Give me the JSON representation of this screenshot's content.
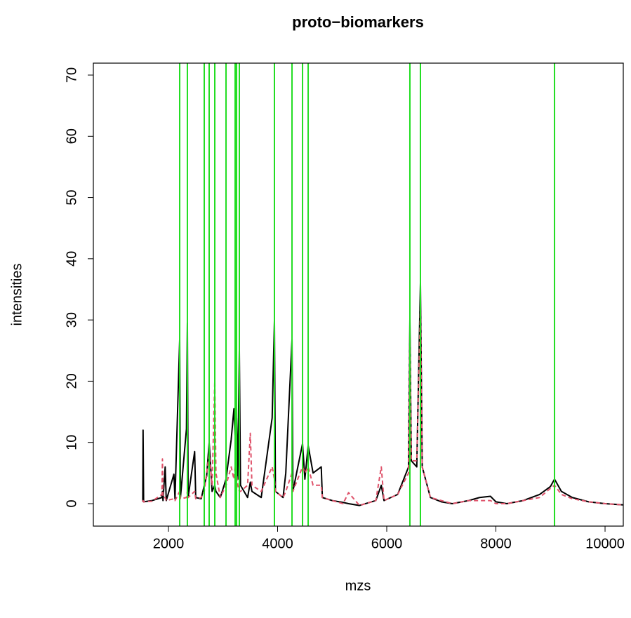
{
  "chart_data": {
    "type": "line",
    "title": "proto−biomarkers",
    "x_label": "mzs",
    "y_label": "intensities",
    "xlim": [
      624,
      10334
    ],
    "ylim": [
      -3.67,
      71.95
    ],
    "xticks": [
      2000,
      4000,
      6000,
      8000,
      10000
    ],
    "yticks": [
      0,
      10,
      20,
      30,
      40,
      50,
      60,
      70
    ],
    "x": [
      1530,
      1535,
      1545,
      1700,
      1880,
      1890,
      1900,
      1940,
      1960,
      2100,
      2120,
      2206,
      2220,
      2330,
      2347,
      2360,
      2480,
      2500,
      2600,
      2656,
      2700,
      2746,
      2800,
      2849,
      2870,
      2950,
      3055,
      3150,
      3200,
      3222,
      3248,
      3270,
      3299,
      3320,
      3450,
      3500,
      3530,
      3700,
      3900,
      3942,
      3960,
      4100,
      4150,
      4264,
      4280,
      4457,
      4500,
      4560,
      4650,
      4800,
      4820,
      5000,
      5200,
      5300,
      5500,
      5800,
      5900,
      5950,
      6200,
      6400,
      6424,
      6450,
      6550,
      6617,
      6650,
      6800,
      7000,
      7200,
      7500,
      7700,
      7900,
      8000,
      8200,
      8500,
      8800,
      9000,
      9074,
      9200,
      9400,
      9700,
      10000,
      10334
    ],
    "series": [
      {
        "color": "#000000",
        "dash": false,
        "values": [
          0.3,
          12,
          0.3,
          0.5,
          1,
          2,
          0.5,
          6,
          0.5,
          4.8,
          0.8,
          26.8,
          1,
          12.2,
          29.5,
          1,
          8.5,
          1,
          0.8,
          3,
          4.5,
          10,
          2,
          3,
          2,
          1,
          4,
          10.5,
          15.5,
          11,
          14,
          4,
          25,
          3,
          1,
          3.5,
          2,
          1,
          14,
          29.8,
          2,
          1,
          5,
          26.8,
          2,
          9.8,
          4,
          9.5,
          5,
          6,
          1,
          0.5,
          0.2,
          0,
          -0.3,
          0.5,
          3,
          0.5,
          1.5,
          6,
          30,
          7,
          6,
          36,
          6,
          1,
          0.3,
          0,
          0.5,
          1,
          1.2,
          0.3,
          0,
          0.5,
          1.5,
          2.8,
          4,
          2,
          1,
          0.3,
          0,
          -0.2
        ]
      },
      {
        "color": "#DF536B",
        "dash": true,
        "values": [
          0.3,
          0.5,
          0.3,
          0.4,
          1.5,
          7.3,
          1,
          1,
          0.5,
          0.8,
          0.5,
          2,
          0.8,
          1,
          2,
          1,
          2,
          0.8,
          1,
          2,
          5,
          8,
          3,
          20,
          5,
          1,
          3,
          6,
          4,
          6,
          5,
          3,
          2,
          2,
          3,
          11.5,
          3,
          2,
          6,
          4,
          2,
          1,
          2,
          5,
          2,
          6,
          5,
          6,
          3,
          3,
          1,
          0.5,
          0,
          1.8,
          -0.3,
          0.5,
          6,
          0.5,
          1.5,
          5,
          28,
          7,
          7,
          32,
          6,
          1,
          0.5,
          0,
          0.5,
          0.5,
          0.5,
          0,
          0,
          0.5,
          1,
          2.5,
          3,
          1.5,
          0.8,
          0.3,
          0,
          -0.2
        ]
      }
    ],
    "vlines": [
      2206,
      2347,
      2656,
      2746,
      2849,
      3055,
      3222,
      3248,
      3299,
      3942,
      4264,
      4457,
      4560,
      6424,
      6617,
      9074
    ],
    "vline_color": "#22DD22"
  }
}
